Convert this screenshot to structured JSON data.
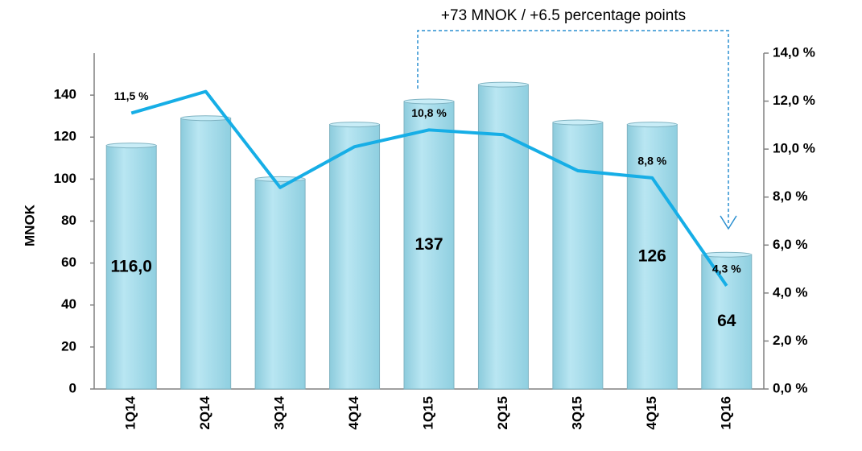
{
  "chart_data": {
    "type": "bar-line",
    "annotation": "+73 MNOK / +6.5 percentage points",
    "y_label": "MNOK",
    "categories": [
      "1Q14",
      "2Q14",
      "3Q14",
      "4Q14",
      "1Q15",
      "2Q15",
      "3Q15",
      "4Q15",
      "1Q16"
    ],
    "series": [
      {
        "type": "bar",
        "color": "#a6dbea",
        "values": [
          116,
          129,
          100,
          126,
          137,
          145,
          127,
          126,
          64
        ],
        "value_labels": [
          "116,0",
          null,
          null,
          null,
          "137",
          null,
          null,
          "126",
          "64"
        ]
      },
      {
        "type": "line",
        "axis": "y2",
        "color": "#16aee6",
        "values": [
          11.5,
          12.4,
          8.4,
          10.1,
          10.8,
          10.6,
          9.1,
          8.8,
          4.3
        ],
        "value_labels": [
          "11,5 %",
          null,
          null,
          null,
          "10,8 %",
          null,
          null,
          "8,8 %",
          "4,3 %"
        ]
      }
    ],
    "ylim": [
      0,
      160
    ],
    "yticks": [
      0,
      20,
      40,
      60,
      80,
      100,
      120,
      140
    ],
    "y2lim": [
      0,
      14
    ],
    "y2ticks": [
      {
        "value": 0,
        "label": "0,0 %"
      },
      {
        "value": 2,
        "label": "2,0 %"
      },
      {
        "value": 4,
        "label": "4,0 %"
      },
      {
        "value": 6,
        "label": "6,0 %"
      },
      {
        "value": 8,
        "label": "8,0 %"
      },
      {
        "value": 10,
        "label": "10,0 %"
      },
      {
        "value": 12,
        "label": "12,0 %"
      },
      {
        "value": 14,
        "label": "14,0 %"
      }
    ],
    "grid": false
  }
}
